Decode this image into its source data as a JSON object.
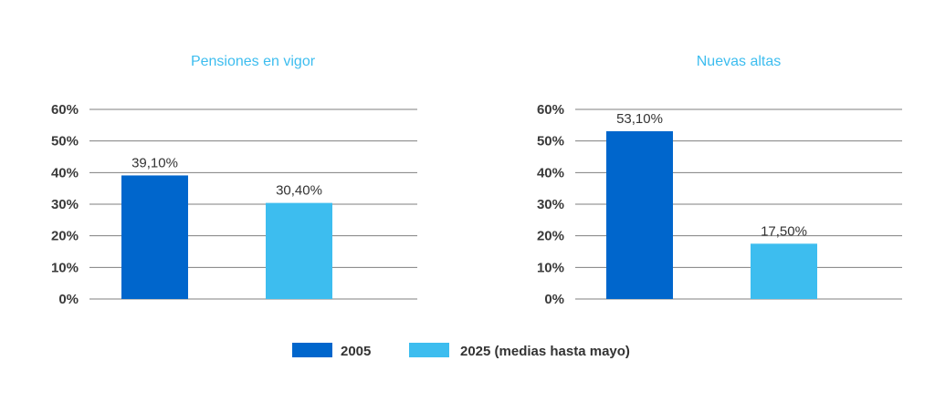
{
  "colors": {
    "series_2005": "#0066CC",
    "series_2025": "#3DBDEF",
    "title": "#3DBDEF",
    "gridline": "#7F7F7F",
    "tick_text": "#3A3A3A"
  },
  "legend": {
    "items": [
      {
        "label": "2005",
        "color": "#0066CC"
      },
      {
        "label": "2025 (medias hasta mayo)",
        "color": "#3DBDEF"
      }
    ],
    "placement": "bottom-center"
  },
  "chart_data": [
    {
      "type": "bar",
      "title": "Pensiones en vigor",
      "xlabel": "",
      "ylabel": "",
      "ylim": [
        0,
        60
      ],
      "yticks": [
        "0%",
        "10%",
        "20%",
        "30%",
        "40%",
        "50%",
        "60%"
      ],
      "grid": true,
      "series": [
        {
          "name": "2005",
          "values": [
            39.1
          ],
          "labels": [
            "39,10%"
          ]
        },
        {
          "name": "2025 (medias hasta mayo)",
          "values": [
            30.4
          ],
          "labels": [
            "30,40%"
          ]
        }
      ]
    },
    {
      "type": "bar",
      "title": "Nuevas altas",
      "xlabel": "",
      "ylabel": "",
      "ylim": [
        0,
        60
      ],
      "yticks": [
        "0%",
        "10%",
        "20%",
        "30%",
        "40%",
        "50%",
        "60%"
      ],
      "grid": true,
      "series": [
        {
          "name": "2005",
          "values": [
            53.1
          ],
          "labels": [
            "53,10%"
          ]
        },
        {
          "name": "2025 (medias hasta mayo)",
          "values": [
            17.5
          ],
          "labels": [
            "17,50%"
          ]
        }
      ]
    }
  ]
}
